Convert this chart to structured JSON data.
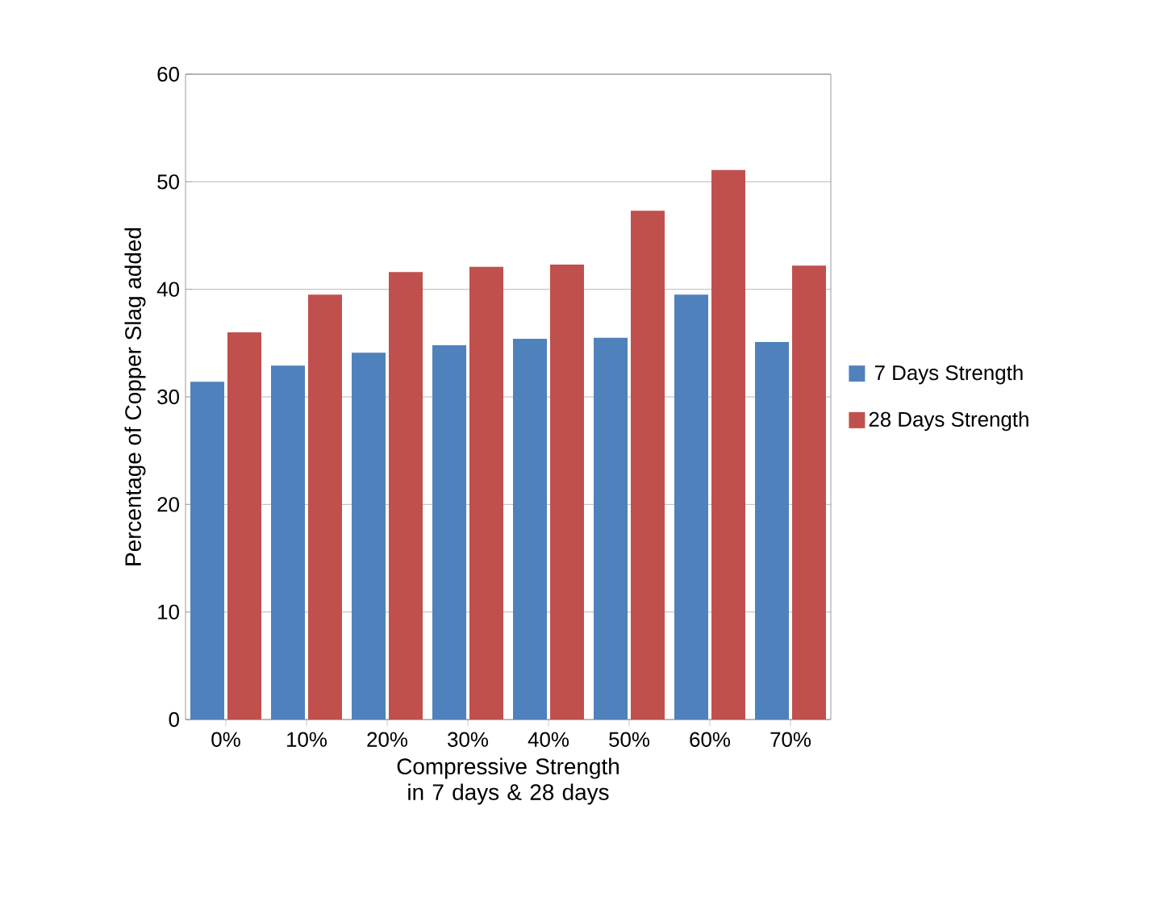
{
  "chart_data": {
    "type": "bar",
    "xlabel": "Compressive Strength in 7 days & 28 days",
    "ylabel": "Percentage of Copper Slag added",
    "categories": [
      "0%",
      "10%",
      "20%",
      "30%",
      "40%",
      "50%",
      "60%",
      "70%"
    ],
    "series": [
      {
        "name": "7 Days Strength",
        "color": "#4f81bd",
        "values": [
          31.4,
          32.9,
          34.1,
          34.8,
          35.4,
          35.5,
          39.5,
          35.1
        ]
      },
      {
        "name": "28 Days Strength",
        "color": "#c0504d",
        "values": [
          36.0,
          39.5,
          41.6,
          42.1,
          42.3,
          47.3,
          51.1,
          42.2
        ]
      }
    ],
    "ylim": [
      0,
      60
    ],
    "yticks": [
      0,
      10,
      20,
      30,
      40,
      50,
      60
    ],
    "grid": "y",
    "legend": "right"
  }
}
